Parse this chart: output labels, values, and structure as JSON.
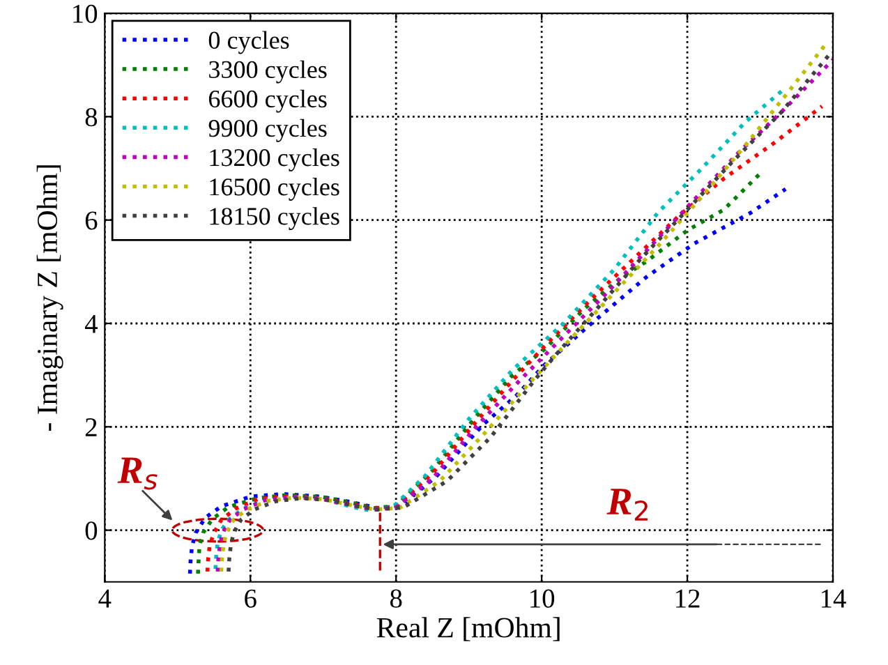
{
  "chart_data": {
    "type": "line",
    "xlabel": "Real Z [mOhm]",
    "ylabel": "- Imaginary Z [mOhm]",
    "xlim": [
      4,
      14
    ],
    "ylim": [
      -1,
      10
    ],
    "xticks": [
      4,
      6,
      8,
      10,
      12,
      14
    ],
    "yticks": [
      0,
      2,
      4,
      6,
      8,
      10
    ],
    "grid": true,
    "legend": "top left",
    "line_style": "dotted",
    "marker": "none",
    "series": [
      {
        "name": "0 cycles",
        "color": "#0000ff",
        "x": [
          5.17,
          5.18,
          5.2,
          5.25,
          5.38,
          5.6,
          6.0,
          6.44,
          6.96,
          7.4,
          7.73,
          8.06,
          8.56,
          9.2,
          9.65,
          10.04,
          10.6,
          11.44,
          12.1,
          12.87,
          13.35
        ],
        "values": [
          -0.84,
          -0.55,
          -0.3,
          -0.05,
          0.24,
          0.46,
          0.65,
          0.7,
          0.65,
          0.54,
          0.43,
          0.46,
          1.05,
          2.05,
          2.6,
          3.2,
          3.9,
          4.9,
          5.55,
          6.14,
          6.6
        ]
      },
      {
        "name": "3300 cycles",
        "color": "#008000",
        "x": [
          5.28,
          5.29,
          5.3,
          5.35,
          5.48,
          5.7,
          6.1,
          6.5,
          7.0,
          7.4,
          7.7,
          8.0,
          8.5,
          9.1,
          9.6,
          10.04,
          10.6,
          11.1,
          11.44,
          12.0,
          12.5,
          13.0
        ],
        "values": [
          -0.84,
          -0.55,
          -0.3,
          -0.05,
          0.22,
          0.45,
          0.62,
          0.68,
          0.64,
          0.53,
          0.43,
          0.47,
          1.15,
          2.2,
          3.0,
          3.5,
          4.3,
          4.9,
          5.2,
          5.8,
          6.2,
          6.9
        ]
      },
      {
        "name": "6600 cycles",
        "color": "#ff0000",
        "x": [
          5.41,
          5.42,
          5.44,
          5.5,
          5.6,
          5.8,
          6.1,
          6.5,
          7.0,
          7.4,
          7.7,
          8.0,
          8.5,
          9.1,
          9.6,
          10.1,
          10.7,
          11.3,
          11.9,
          12.5,
          13.2,
          13.85
        ],
        "values": [
          -0.8,
          -0.55,
          -0.3,
          -0.05,
          0.2,
          0.42,
          0.6,
          0.66,
          0.62,
          0.5,
          0.42,
          0.46,
          1.1,
          2.1,
          2.9,
          3.65,
          4.5,
          5.3,
          6.1,
          6.8,
          7.5,
          8.2
        ]
      },
      {
        "name": "9900 cycles",
        "color": "#00bfbf",
        "x": [
          5.52,
          5.53,
          5.55,
          5.6,
          5.7,
          5.9,
          6.2,
          6.6,
          7.0,
          7.4,
          7.65,
          7.95,
          8.4,
          9.0,
          9.6,
          10.3,
          11.0,
          11.6,
          12.2,
          12.8,
          13.3
        ],
        "values": [
          -0.75,
          -0.5,
          -0.25,
          0.0,
          0.2,
          0.42,
          0.58,
          0.64,
          0.6,
          0.45,
          0.38,
          0.44,
          1.05,
          2.15,
          3.1,
          4.0,
          5.05,
          6.15,
          7.0,
          7.9,
          8.5
        ]
      },
      {
        "name": "13200 cycles",
        "color": "#bf00bf",
        "x": [
          5.55,
          5.56,
          5.58,
          5.62,
          5.72,
          5.9,
          6.2,
          6.6,
          7.0,
          7.4,
          7.7,
          8.0,
          8.5,
          9.1,
          9.7,
          10.3,
          10.9,
          11.5,
          12.1,
          12.7,
          13.3,
          14.0
        ],
        "values": [
          -0.8,
          -0.55,
          -0.3,
          -0.05,
          0.2,
          0.4,
          0.58,
          0.64,
          0.6,
          0.48,
          0.4,
          0.44,
          1.0,
          2.0,
          2.9,
          3.75,
          4.6,
          5.5,
          6.4,
          7.3,
          8.1,
          9.1
        ]
      },
      {
        "name": "16500 cycles",
        "color": "#bfbf00",
        "x": [
          5.6,
          5.61,
          5.63,
          5.67,
          5.77,
          5.95,
          6.25,
          6.6,
          7.0,
          7.4,
          7.7,
          8.05,
          8.6,
          9.2,
          9.8,
          10.4,
          11.0,
          11.6,
          12.2,
          12.8,
          13.4,
          13.9
        ],
        "values": [
          -0.8,
          -0.55,
          -0.3,
          -0.05,
          0.2,
          0.4,
          0.57,
          0.63,
          0.6,
          0.48,
          0.4,
          0.43,
          0.95,
          1.85,
          2.8,
          3.7,
          4.6,
          5.5,
          6.45,
          7.45,
          8.5,
          9.4
        ]
      },
      {
        "name": "18150 cycles",
        "color": "#404040",
        "x": [
          5.7,
          5.71,
          5.73,
          5.77,
          5.87,
          6.05,
          6.35,
          6.7,
          7.1,
          7.45,
          7.75,
          8.1,
          8.7,
          9.3,
          9.9,
          10.23,
          10.8,
          11.36,
          12.0,
          12.6,
          13.3,
          13.95
        ],
        "values": [
          -0.8,
          -0.55,
          -0.3,
          -0.05,
          0.2,
          0.4,
          0.56,
          0.62,
          0.58,
          0.47,
          0.4,
          0.44,
          0.95,
          1.8,
          2.9,
          3.45,
          4.35,
          5.25,
          6.2,
          7.1,
          8.1,
          9.2
        ]
      }
    ],
    "annotations": [
      "R$_{s}$",
      "R$_{2}$"
    ]
  }
}
